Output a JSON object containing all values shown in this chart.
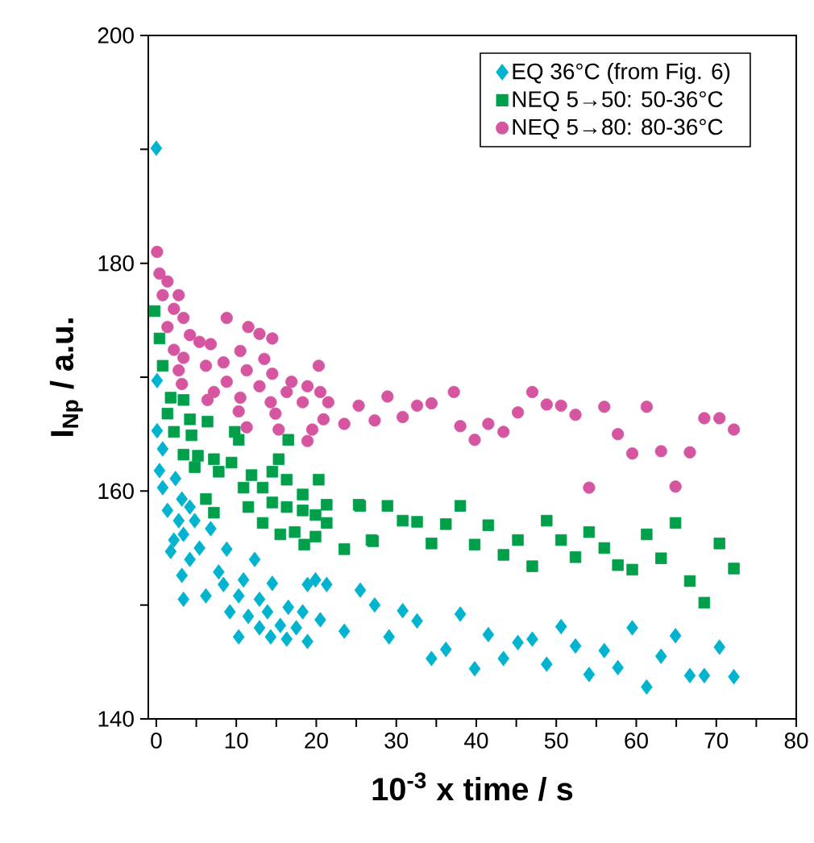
{
  "chart_data": {
    "type": "scatter",
    "xlabel": "10$^{-3}$ x time / s",
    "ylabel": "I$_{Np}$ / a.u.",
    "xlim": [
      -1,
      80
    ],
    "ylim": [
      140,
      200
    ],
    "xticks": [
      0,
      {
        "value": 5,
        "label": null
      },
      10,
      {
        "value": 15,
        "label": null
      },
      20,
      {
        "value": 25,
        "label": null
      },
      30,
      {
        "value": 35,
        "label": null
      },
      40,
      {
        "value": 45,
        "label": null
      },
      50,
      {
        "value": 55,
        "label": null
      },
      60,
      {
        "value": 65,
        "label": null
      },
      70,
      {
        "value": 75,
        "label": null
      },
      80
    ],
    "yticks": [
      140,
      {
        "value": 150,
        "label": null
      },
      160,
      {
        "value": 170,
        "label": null
      },
      180,
      {
        "value": 190,
        "label": null
      },
      200
    ],
    "legend": "top right",
    "series": [
      {
        "name": "EQ 36°C (from Fig. 6)",
        "color": "#00b4d0",
        "marker": "diamond",
        "x": [
          0,
          0.1,
          0.1,
          0.8,
          0.4,
          2.4,
          0.8,
          3.2,
          1.4,
          4.2,
          2.8,
          4.8,
          3.4,
          2.2,
          5.4,
          6.8,
          1.8,
          4.2,
          8.8,
          12.3,
          3.2,
          7.8,
          3.4,
          6.2,
          8.4,
          10.9,
          10.3,
          12.9,
          14.5,
          9.2,
          11.5,
          13.9,
          16.5,
          10.3,
          12.9,
          15.5,
          18.3,
          18.9,
          19.9,
          21.3,
          17.5,
          18.9,
          20.5,
          16.3,
          14.3,
          23.5,
          25.5,
          27.3,
          29.1,
          30.8,
          32.6,
          34.4,
          36.2,
          38.0,
          39.8,
          41.5,
          43.4,
          45.2,
          47.0,
          48.8,
          50.6,
          52.4,
          54.1,
          56.0,
          57.7,
          59.5,
          61.3,
          63.1,
          64.9,
          66.7,
          68.5,
          70.4,
          72.2
        ],
        "values": [
          190.1,
          169.7,
          165.3,
          163.7,
          161.8,
          161.1,
          160.3,
          159.3,
          158.3,
          158.6,
          157.4,
          157.4,
          156.2,
          155.7,
          155.0,
          156.7,
          154.7,
          154.0,
          154.9,
          154.0,
          152.6,
          152.9,
          150.5,
          150.8,
          151.8,
          152.2,
          150.8,
          150.5,
          151.9,
          149.4,
          149.0,
          149.4,
          149.8,
          147.2,
          148.0,
          148.2,
          149.4,
          151.8,
          152.2,
          151.8,
          148.0,
          146.8,
          148.7,
          147.0,
          147.2,
          147.7,
          151.3,
          150.0,
          147.2,
          149.5,
          148.6,
          145.3,
          146.1,
          149.2,
          144.4,
          147.4,
          145.3,
          146.7,
          147.0,
          144.8,
          148.1,
          146.4,
          143.9,
          146.0,
          144.5,
          148.0,
          142.8,
          145.5,
          147.3,
          143.8,
          143.8,
          146.3,
          143.7
        ]
      },
      {
        "name": "NEQ 5→50: 50-36°C",
        "color": "#00a04a",
        "marker": "square",
        "x": [
          -0.2,
          0.4,
          0.8,
          1.8,
          3.4,
          1.4,
          4.2,
          6.4,
          2.2,
          4.4,
          9.8,
          10.3,
          16.5,
          3.4,
          5.2,
          7.2,
          9.4,
          15.3,
          4.8,
          7.8,
          11.9,
          14.5,
          16.3,
          20.3,
          10.9,
          13.3,
          18.3,
          6.2,
          14.5,
          21.3,
          16.3,
          11.5,
          18.3,
          7.2,
          19.9,
          13.3,
          21.3,
          15.5,
          17.3,
          19.9,
          18.5,
          23.5,
          25.3,
          26.9,
          25.5,
          27.1,
          28.9,
          30.8,
          32.6,
          34.4,
          36.2,
          38.0,
          39.8,
          41.5,
          43.4,
          45.2,
          47.0,
          48.8,
          50.6,
          52.4,
          54.1,
          56.0,
          57.7,
          59.5,
          61.3,
          63.1,
          64.9,
          66.7,
          68.5,
          70.4,
          72.2
        ],
        "values": [
          175.8,
          173.4,
          171.0,
          168.2,
          168.0,
          166.8,
          166.3,
          166.1,
          165.2,
          164.9,
          165.2,
          164.5,
          164.5,
          163.2,
          163.1,
          162.8,
          162.5,
          162.8,
          162.1,
          161.7,
          161.4,
          161.7,
          161.0,
          161.0,
          160.3,
          160.3,
          159.7,
          159.3,
          159.0,
          158.8,
          158.6,
          158.6,
          158.3,
          158.1,
          157.9,
          157.2,
          157.2,
          156.2,
          156.4,
          156.0,
          155.3,
          154.9,
          158.8,
          155.7,
          158.7,
          155.6,
          158.7,
          157.4,
          157.3,
          155.4,
          157.1,
          158.7,
          155.3,
          157.0,
          154.4,
          155.7,
          153.4,
          157.4,
          155.7,
          154.2,
          156.4,
          155.0,
          153.5,
          153.1,
          156.2,
          154.1,
          157.2,
          152.1,
          150.2,
          155.4,
          153.2
        ]
      },
      {
        "name": "NEQ 5→80: 80-36°C",
        "color": "#d555a0",
        "marker": "circle",
        "x": [
          0.1,
          0.4,
          1.4,
          0.8,
          2.8,
          2.2,
          3.4,
          8.8,
          1.4,
          11.5,
          12.9,
          14.5,
          4.2,
          5.4,
          6.8,
          2.2,
          10.5,
          3.4,
          6.2,
          8.4,
          13.5,
          20.3,
          2.8,
          11.3,
          14.5,
          8.8,
          16.9,
          3.2,
          12.9,
          18.9,
          7.2,
          16.3,
          10.5,
          20.5,
          6.4,
          14.3,
          18.3,
          21.5,
          25.3,
          10.3,
          14.9,
          20.9,
          23.5,
          11.3,
          15.3,
          19.5,
          18.9,
          27.3,
          28.9,
          30.8,
          32.6,
          34.4,
          37.2,
          38.0,
          39.8,
          41.5,
          43.4,
          45.2,
          47.0,
          48.8,
          50.6,
          52.4,
          54.1,
          56.0,
          57.7,
          59.5,
          61.3,
          63.1,
          64.9,
          66.7,
          68.5,
          70.4,
          72.2
        ],
        "values": [
          181.0,
          179.1,
          178.4,
          177.2,
          177.2,
          176.0,
          175.2,
          175.2,
          174.4,
          174.4,
          173.8,
          173.4,
          173.7,
          173.1,
          172.9,
          172.4,
          172.3,
          171.7,
          171.0,
          171.3,
          171.6,
          171.0,
          170.6,
          170.6,
          170.3,
          169.6,
          169.6,
          169.4,
          169.2,
          169.2,
          168.7,
          168.7,
          168.2,
          168.7,
          168.0,
          167.8,
          167.8,
          167.8,
          167.5,
          167.0,
          166.8,
          166.3,
          165.9,
          165.6,
          165.4,
          165.4,
          164.4,
          166.2,
          168.3,
          166.5,
          167.5,
          167.7,
          168.7,
          165.7,
          164.5,
          165.9,
          165.2,
          166.9,
          168.7,
          167.6,
          167.5,
          166.7,
          160.3,
          167.4,
          165.0,
          163.3,
          167.4,
          163.5,
          160.4,
          163.4,
          166.4,
          166.4,
          165.4
        ]
      }
    ]
  }
}
